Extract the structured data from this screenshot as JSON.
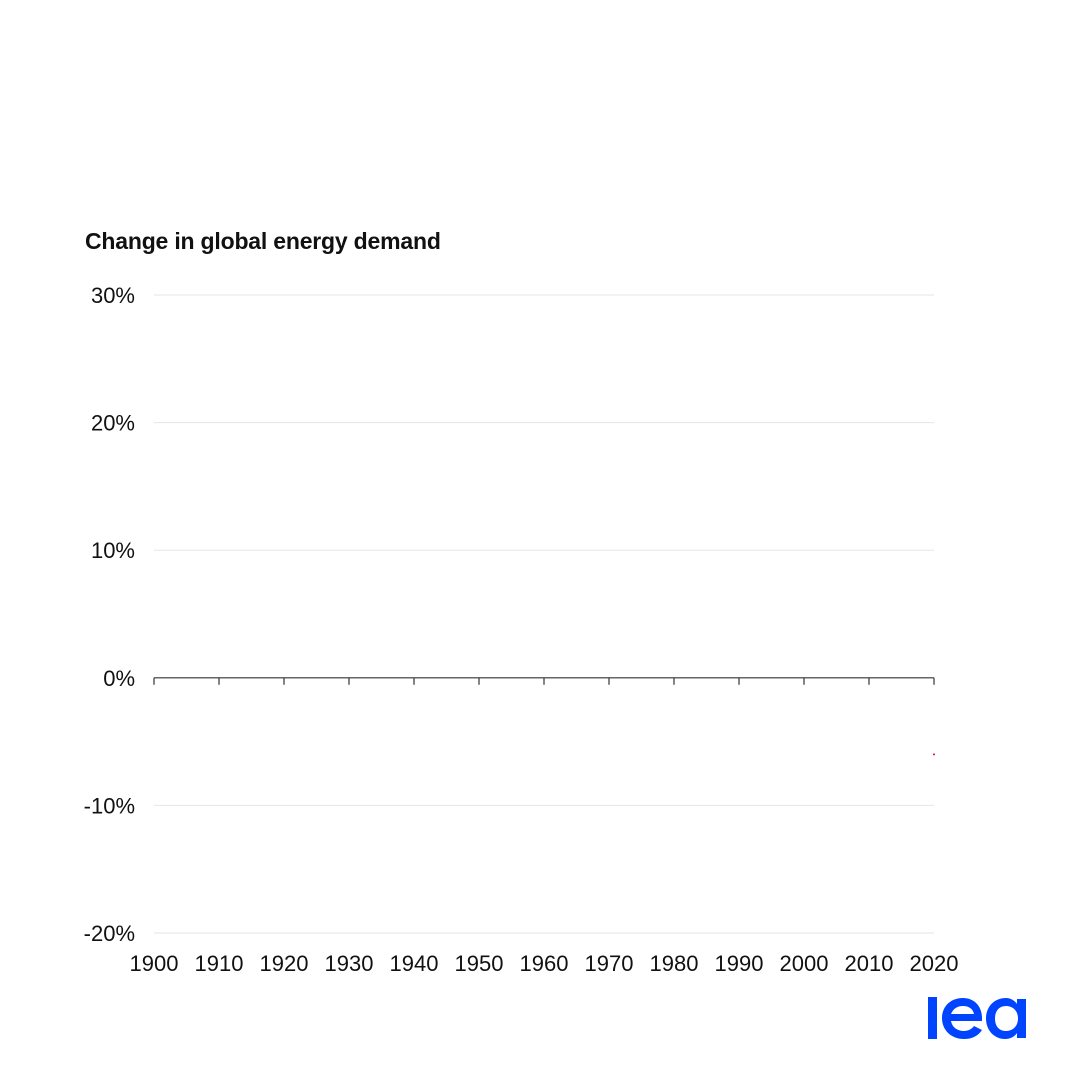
{
  "chart_data": {
    "type": "line",
    "title": "Change in global energy demand",
    "xlabel": "",
    "ylabel": "",
    "xlim": [
      1900,
      2020
    ],
    "ylim": [
      -20,
      30
    ],
    "x_ticks": [
      1900,
      1910,
      1920,
      1930,
      1940,
      1950,
      1960,
      1970,
      1980,
      1990,
      2000,
      2010,
      2020
    ],
    "x_tick_labels": [
      "1900",
      "1910",
      "1920",
      "1930",
      "1940",
      "1950",
      "1960",
      "1970",
      "1980",
      "1990",
      "2000",
      "2010",
      "2020"
    ],
    "y_ticks": [
      30,
      20,
      10,
      0,
      -10,
      -20
    ],
    "y_tick_labels": [
      "30%",
      "20%",
      "10%",
      "0%",
      "-10%",
      "-20%"
    ],
    "grid": true,
    "series": [
      {
        "color": "#e0003c",
        "x": [
          2020
        ],
        "values": [
          -6
        ]
      }
    ]
  },
  "colors": {
    "grid": "#e6e6e6",
    "axis": "#333333",
    "text": "#111111",
    "brand": "#0044ff"
  },
  "logo": {
    "text": "iea",
    "icon": "iea-logo"
  }
}
